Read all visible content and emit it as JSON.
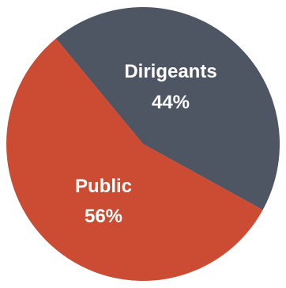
{
  "chart_data": {
    "type": "pie",
    "slices": [
      {
        "label": "Dirigeants",
        "value": 44,
        "value_label": "44%",
        "color": "#4e5563"
      },
      {
        "label": "Public",
        "value": 56,
        "value_label": "56%",
        "color": "#cb4c33"
      }
    ]
  }
}
